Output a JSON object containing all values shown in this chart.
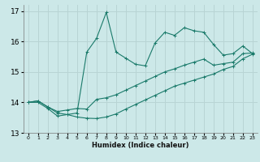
{
  "bg_color": "#cce8e8",
  "grid_color": "#b8d4d4",
  "line_color": "#1a7a6a",
  "marker": "+",
  "xlabel": "Humidex (Indice chaleur)",
  "xlim": [
    -0.5,
    23.5
  ],
  "ylim": [
    13.0,
    17.2
  ],
  "yticks": [
    13,
    14,
    15,
    16,
    17
  ],
  "xticks": [
    0,
    1,
    2,
    3,
    4,
    5,
    6,
    7,
    8,
    9,
    10,
    11,
    12,
    13,
    14,
    15,
    16,
    17,
    18,
    19,
    20,
    21,
    22,
    23
  ],
  "series": [
    {
      "x": [
        0,
        1,
        2,
        3,
        4,
        5,
        6,
        7,
        8,
        9,
        10,
        11,
        12,
        13,
        14,
        15,
        16,
        17,
        18,
        19,
        20,
        21,
        22,
        23
      ],
      "y": [
        14.0,
        14.0,
        13.8,
        13.55,
        13.6,
        13.65,
        15.65,
        16.1,
        16.95,
        15.65,
        15.45,
        15.25,
        15.2,
        15.95,
        16.3,
        16.2,
        16.45,
        16.35,
        16.3,
        15.9,
        15.55,
        15.6,
        15.85,
        15.6
      ]
    },
    {
      "x": [
        0,
        1,
        2,
        3,
        4,
        5,
        6,
        7,
        8,
        9,
        10,
        11,
        12,
        13,
        14,
        15,
        16,
        17,
        18,
        19,
        20,
        21,
        22,
        23
      ],
      "y": [
        14.0,
        14.05,
        13.85,
        13.7,
        13.75,
        13.8,
        13.78,
        14.1,
        14.15,
        14.25,
        14.4,
        14.55,
        14.7,
        14.85,
        15.0,
        15.1,
        15.22,
        15.32,
        15.42,
        15.22,
        15.27,
        15.32,
        15.6,
        15.62
      ]
    },
    {
      "x": [
        0,
        1,
        2,
        3,
        4,
        5,
        6,
        7,
        8,
        9,
        10,
        11,
        12,
        13,
        14,
        15,
        16,
        17,
        18,
        19,
        20,
        21,
        22,
        23
      ],
      "y": [
        14.0,
        14.05,
        13.85,
        13.65,
        13.6,
        13.52,
        13.48,
        13.47,
        13.52,
        13.62,
        13.78,
        13.93,
        14.08,
        14.23,
        14.38,
        14.53,
        14.63,
        14.73,
        14.83,
        14.93,
        15.08,
        15.18,
        15.43,
        15.58
      ]
    }
  ]
}
